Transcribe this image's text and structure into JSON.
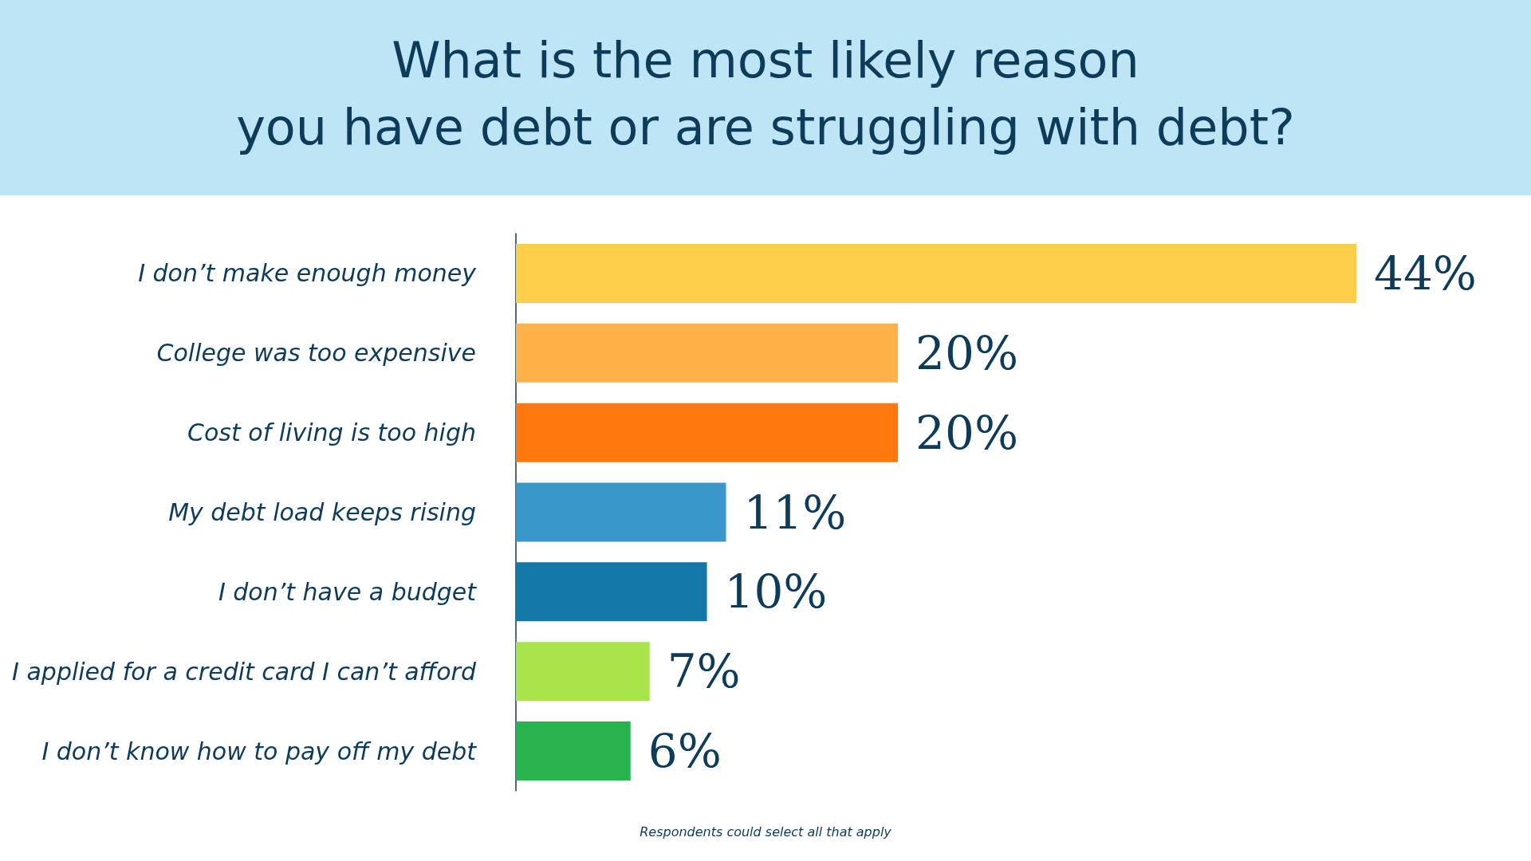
{
  "chart_data": {
    "type": "bar",
    "orientation": "horizontal",
    "title": "What is the most likely reason\nyou have debt or are struggling with debt?",
    "categories": [
      "I don’t make enough money",
      "College was too expensive",
      "Cost of living is too high",
      "My debt load keeps rising",
      "I don’t have a budget",
      "I applied for a credit card I can’t afford",
      "I don’t know how to pay off my debt"
    ],
    "values": [
      44,
      20,
      20,
      11,
      10,
      7,
      6
    ],
    "colors": [
      "#fecd4a",
      "#feb248",
      "#fe780f",
      "#3a97c9",
      "#1377a8",
      "#a8e44a",
      "#28b34c"
    ],
    "value_labels": [
      "44%",
      "20%",
      "20%",
      "11%",
      "10%",
      "7%",
      "6%"
    ],
    "annotations": [
      "Respondents could select all that apply"
    ]
  }
}
